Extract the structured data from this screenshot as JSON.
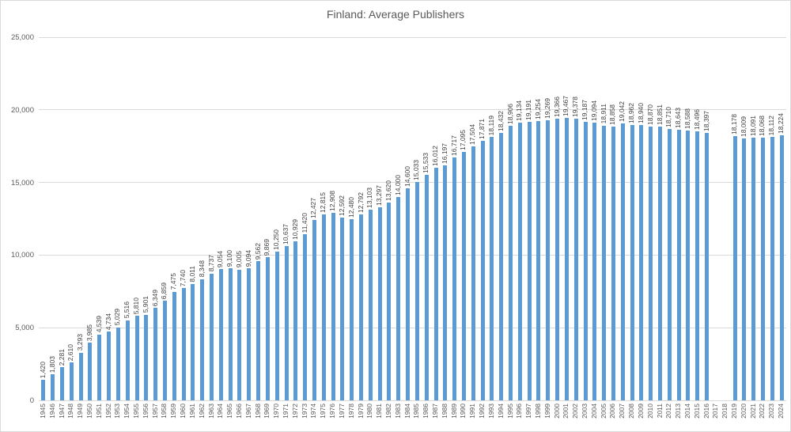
{
  "chart_data": {
    "type": "bar",
    "title": "Finland: Average Publishers",
    "xlabel": "",
    "ylabel": "",
    "ylim": [
      0,
      25000
    ],
    "ytick_step": 5000,
    "ytick_labels": [
      "0",
      "5,000",
      "10,000",
      "15,000",
      "20,000",
      "25,000"
    ],
    "grid": true,
    "legend_position": "none",
    "data_labels": "rotated-vertical",
    "bar_color": "#5b9bd5",
    "gridline_color": "#d9d9d9",
    "title_color": "#595959",
    "axis_text_color": "#595959",
    "categories": [
      1945,
      1946,
      1947,
      1948,
      1949,
      1950,
      1951,
      1952,
      1953,
      1954,
      1955,
      1956,
      1957,
      1958,
      1959,
      1960,
      1961,
      1962,
      1963,
      1964,
      1965,
      1966,
      1967,
      1968,
      1969,
      1970,
      1971,
      1972,
      1973,
      1974,
      1975,
      1976,
      1977,
      1978,
      1979,
      1980,
      1981,
      1982,
      1983,
      1984,
      1985,
      1986,
      1987,
      1988,
      1989,
      1990,
      1991,
      1992,
      1993,
      1994,
      1995,
      1996,
      1997,
      1998,
      1999,
      2000,
      2001,
      2002,
      2003,
      2004,
      2005,
      2006,
      2007,
      2008,
      2009,
      2010,
      2011,
      2012,
      2013,
      2014,
      2015,
      2016,
      2017,
      2018,
      2019,
      2020,
      2021,
      2022,
      2023,
      2024
    ],
    "values": [
      1420,
      1803,
      2281,
      2610,
      3293,
      3985,
      4539,
      4734,
      5029,
      5516,
      5810,
      5901,
      6349,
      6859,
      7475,
      7740,
      8011,
      8348,
      8737,
      9054,
      9100,
      9005,
      9094,
      9562,
      9869,
      10250,
      10637,
      10929,
      11420,
      12427,
      12815,
      12908,
      12592,
      12480,
      12792,
      13103,
      13297,
      13620,
      14000,
      14600,
      15033,
      15533,
      16012,
      16197,
      16717,
      17095,
      17504,
      17871,
      18119,
      18432,
      18906,
      19134,
      19191,
      19254,
      19269,
      19366,
      19467,
      19378,
      19187,
      19094,
      18911,
      18858,
      19042,
      18962,
      18940,
      18870,
      18851,
      18710,
      18643,
      18588,
      18496,
      18397,
      null,
      null,
      18178,
      18009,
      18091,
      18068,
      18112,
      18224
    ]
  }
}
